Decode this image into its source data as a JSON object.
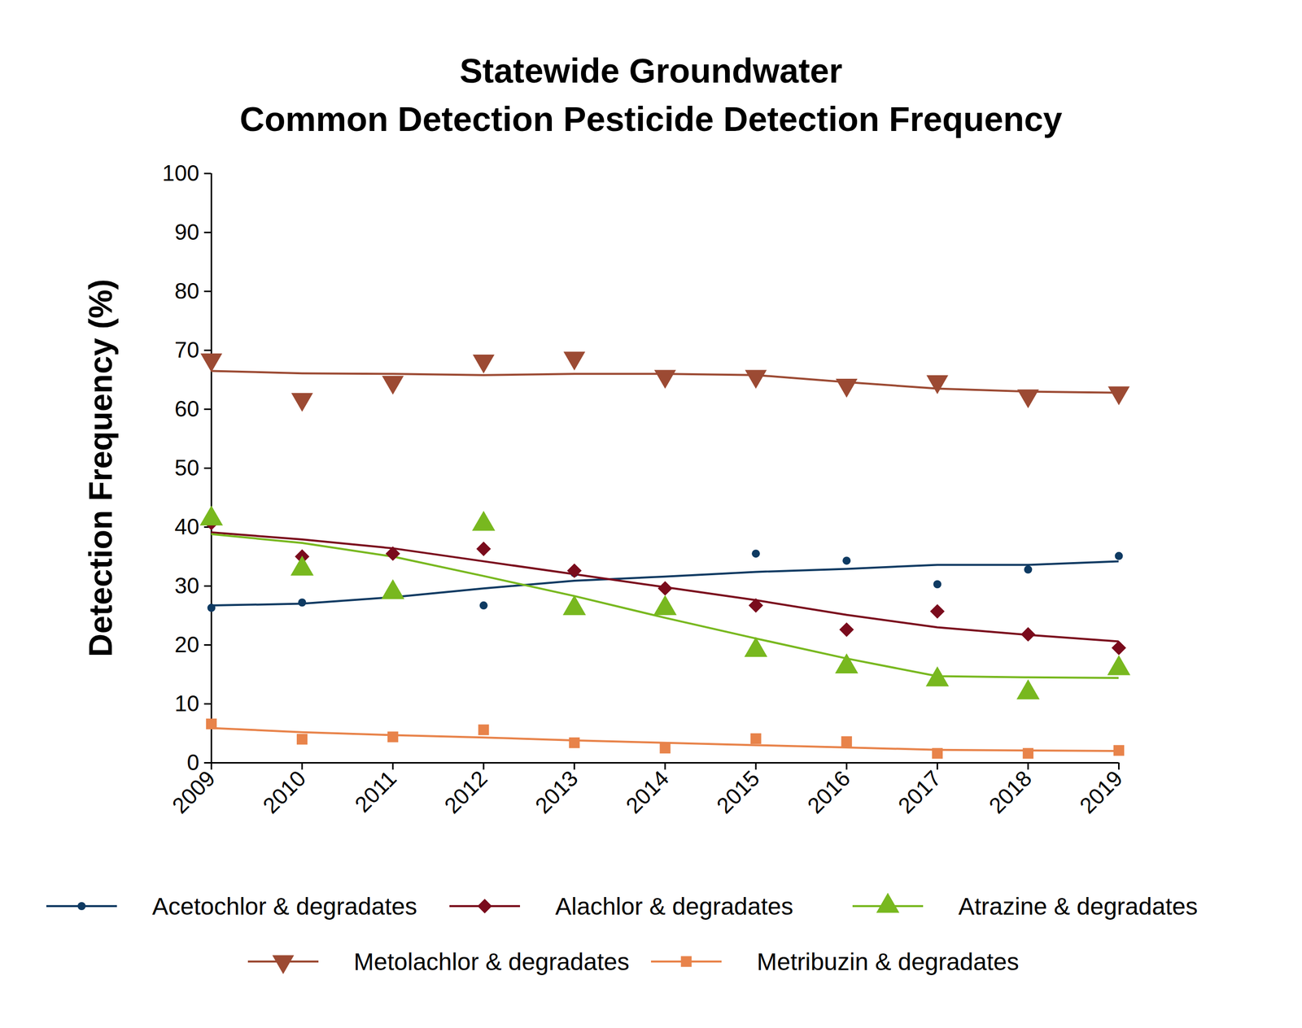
{
  "chart_data": {
    "type": "scatter",
    "title": "Statewide Groundwater\nCommon Detection Pesticide Detection Frequency",
    "y_label": "Detection Frequency (%)",
    "x": [
      2009,
      2010,
      2011,
      2012,
      2013,
      2014,
      2015,
      2016,
      2017,
      2018,
      2019
    ],
    "xlim": [
      2009,
      2019
    ],
    "xticks": [
      2009,
      2010,
      2011,
      2012,
      2013,
      2014,
      2015,
      2016,
      2017,
      2018,
      2019
    ],
    "ylim": [
      0,
      100
    ],
    "yticks": [
      0,
      10,
      20,
      30,
      40,
      50,
      60,
      70,
      80,
      90,
      100
    ],
    "grid": false,
    "series": [
      {
        "name": "Acetochlor & degradates",
        "color": "#0e3a62",
        "marker": "circle",
        "values": [
          26.3,
          27.2,
          29.5,
          26.7,
          32.2,
          29.8,
          35.5,
          34.3,
          30.3,
          32.8,
          35.1
        ],
        "trend": [
          26.7,
          27.0,
          28.1,
          29.6,
          30.9,
          31.6,
          32.4,
          32.9,
          33.6,
          33.6,
          34.2
        ]
      },
      {
        "name": "Alachlor & degradates",
        "color": "#7a0b1c",
        "marker": "diamond",
        "values": [
          40.7,
          35.0,
          35.5,
          36.3,
          32.6,
          29.6,
          26.7,
          22.6,
          25.7,
          21.8,
          19.5
        ],
        "trend": [
          39.1,
          37.9,
          36.4,
          34.2,
          32.0,
          29.8,
          27.6,
          25.1,
          23.0,
          21.7,
          20.6
        ]
      },
      {
        "name": "Atrazine & degradates",
        "color": "#78b81f",
        "marker": "triangle",
        "values": [
          41.4,
          32.9,
          28.9,
          40.5,
          26.2,
          26.2,
          19.1,
          16.3,
          14.1,
          11.9,
          16.0
        ],
        "trend": [
          38.8,
          37.3,
          35.0,
          31.7,
          28.3,
          24.6,
          21.1,
          17.7,
          14.7,
          14.5,
          14.4
        ]
      },
      {
        "name": "Metolachlor & degradates",
        "color": "#9c4a33",
        "marker": "triangle-down",
        "values": [
          68.4,
          61.7,
          64.6,
          68.2,
          68.7,
          65.6,
          65.6,
          64.1,
          64.7,
          62.3,
          62.8
        ],
        "trend": [
          66.5,
          66.1,
          66.0,
          65.8,
          66.0,
          66.0,
          65.8,
          64.6,
          63.5,
          63.0,
          62.8
        ]
      },
      {
        "name": "Metribuzin & degradates",
        "color": "#e8834a",
        "marker": "square",
        "values": [
          6.6,
          4.0,
          4.4,
          5.6,
          3.4,
          2.5,
          4.1,
          3.6,
          1.6,
          1.6,
          2.1
        ],
        "trend": [
          5.9,
          5.2,
          4.7,
          4.3,
          3.8,
          3.4,
          3.0,
          2.6,
          2.2,
          2.1,
          2.0
        ]
      }
    ]
  }
}
